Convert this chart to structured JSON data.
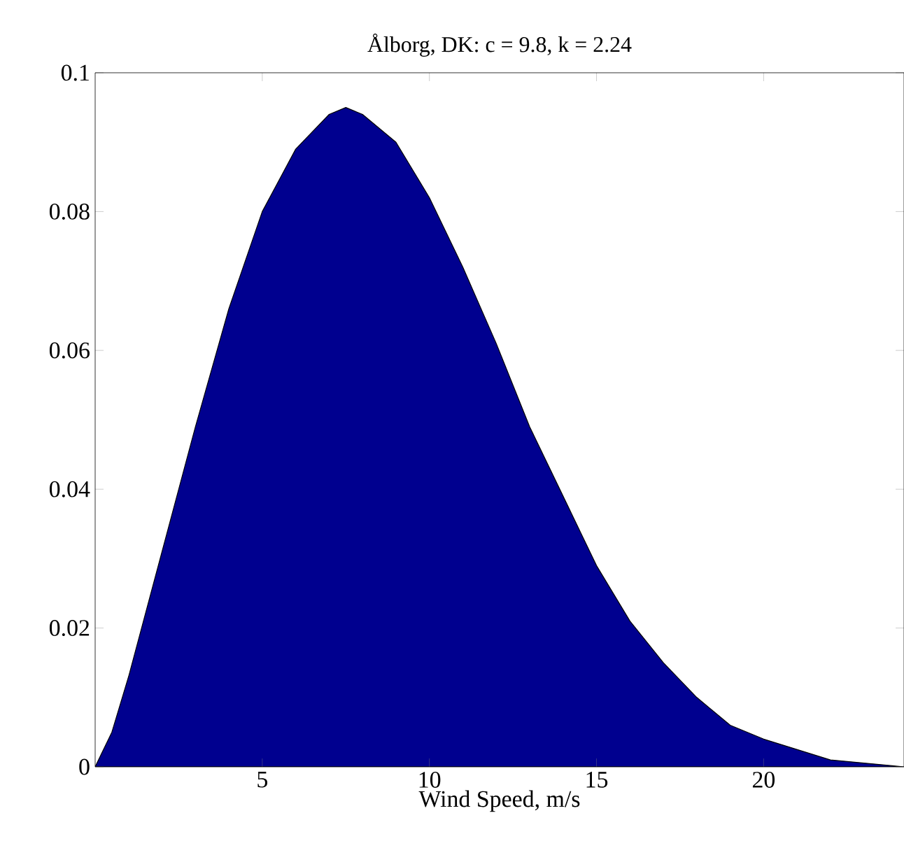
{
  "chart_data": {
    "type": "area",
    "title": "Ålborg, DK: c = 9.8, k = 2.24",
    "xlabel": "Wind Speed, m/s",
    "x": [
      0,
      0.5,
      1,
      2,
      3,
      4,
      5,
      6,
      7,
      7.5,
      8,
      9,
      10,
      11,
      12,
      13,
      14,
      15,
      16,
      17,
      18,
      19,
      20,
      22,
      24.2
    ],
    "values": [
      0,
      0.005,
      0.013,
      0.031,
      0.049,
      0.066,
      0.08,
      0.089,
      0.094,
      0.095,
      0.094,
      0.09,
      0.082,
      0.072,
      0.061,
      0.049,
      0.039,
      0.029,
      0.021,
      0.015,
      0.01,
      0.006,
      0.004,
      0.001,
      0
    ],
    "color": "#00008f",
    "xlim": [
      0,
      24.2
    ],
    "ylim": [
      0,
      0.1
    ],
    "xticks": [
      5,
      10,
      15,
      20
    ],
    "yticks": [
      0,
      0.02,
      0.04,
      0.06,
      0.08,
      0.1
    ]
  }
}
